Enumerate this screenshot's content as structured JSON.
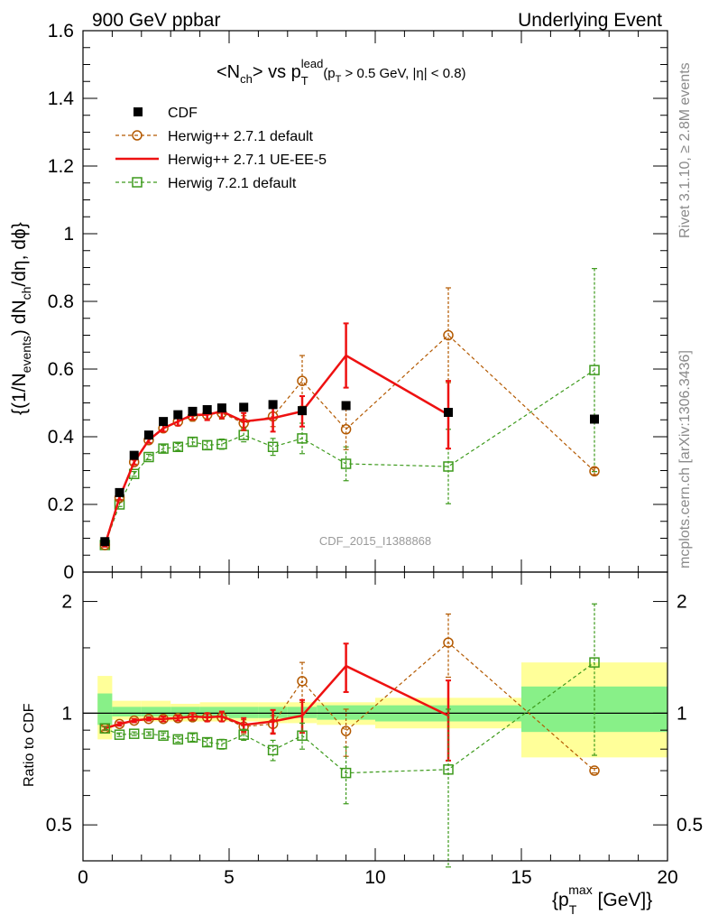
{
  "header": {
    "left": "900 GeV ppbar",
    "right": "Underlying Event"
  },
  "side_labels": {
    "rivet": "Rivet 3.1.10, ≥ 2.8M events",
    "mcplots": "mcplots.cern.ch [arXiv:1306.3436]"
  },
  "chart_data": [
    {
      "type": "scatter",
      "panel": "main",
      "title": "<N_ch> vs p_T^lead (p_T > 0.5 GeV, |η| < 0.8)",
      "ylabel": "{(1/N_events) dN_ch/dη, dϕ}",
      "xlabel": "",
      "watermark": "CDF_2015_I1388868",
      "xlim": [
        0,
        20
      ],
      "ylim": [
        0,
        1.6
      ],
      "xticks": [
        "0",
        "5",
        "10",
        "15",
        "20"
      ],
      "yticks": [
        "0",
        "0.2",
        "0.4",
        "0.6",
        "0.8",
        "1",
        "1.2",
        "1.4",
        "1.6"
      ],
      "legend_position": "top-left",
      "series": [
        {
          "name": "CDF",
          "color": "#000000",
          "style": "square-marker",
          "x": [
            0.75,
            1.25,
            1.75,
            2.25,
            2.75,
            3.25,
            3.75,
            4.25,
            4.75,
            5.5,
            6.5,
            7.5,
            9.0,
            12.5,
            17.5
          ],
          "y": [
            0.09,
            0.235,
            0.345,
            0.405,
            0.445,
            0.465,
            0.475,
            0.48,
            0.485,
            0.487,
            0.495,
            0.477,
            0.492,
            0.472,
            0.452
          ],
          "err": [
            0.005,
            0.005,
            0.005,
            0.005,
            0.005,
            0.005,
            0.005,
            0.005,
            0.005,
            0.005,
            0.005,
            0.005,
            0.005,
            0.005,
            0.005
          ]
        },
        {
          "name": "Herwig++ 2.7.1 default",
          "color": "#b35900",
          "style": "dashed-open-circle",
          "x": [
            0.75,
            1.25,
            1.75,
            2.25,
            2.75,
            3.25,
            3.75,
            4.25,
            4.75,
            5.5,
            6.5,
            7.5,
            9.0,
            12.5,
            17.5
          ],
          "y": [
            0.08,
            0.22,
            0.325,
            0.39,
            0.425,
            0.445,
            0.46,
            0.465,
            0.47,
            0.44,
            0.46,
            0.565,
            0.422,
            0.7,
            0.298
          ],
          "err": [
            0.005,
            0.006,
            0.007,
            0.008,
            0.01,
            0.012,
            0.014,
            0.016,
            0.018,
            0.022,
            0.03,
            0.075,
            0.06,
            0.14,
            0.01
          ]
        },
        {
          "name": "Herwig++ 2.7.1 UE-EE-5",
          "color": "#ee1111",
          "style": "solid-line",
          "x": [
            0.75,
            1.25,
            1.75,
            2.25,
            2.75,
            3.25,
            3.75,
            4.25,
            4.75,
            5.5,
            6.5,
            7.5,
            9.0,
            12.5
          ],
          "y": [
            0.08,
            0.22,
            0.325,
            0.39,
            0.425,
            0.445,
            0.465,
            0.465,
            0.475,
            0.445,
            0.455,
            0.475,
            0.64,
            0.465
          ],
          "err": [
            0.005,
            0.006,
            0.007,
            0.008,
            0.01,
            0.012,
            0.014,
            0.016,
            0.02,
            0.025,
            0.04,
            0.045,
            0.095,
            0.1
          ]
        },
        {
          "name": "Herwig 7.2.1 default",
          "color": "#3d9a1c",
          "style": "dashed-open-square",
          "x": [
            0.75,
            1.25,
            1.75,
            2.25,
            2.75,
            3.25,
            3.75,
            4.25,
            4.75,
            5.5,
            6.5,
            7.5,
            9.0,
            12.5,
            17.5
          ],
          "y": [
            0.08,
            0.2,
            0.29,
            0.34,
            0.365,
            0.37,
            0.385,
            0.375,
            0.378,
            0.405,
            0.37,
            0.395,
            0.32,
            0.312,
            0.597
          ],
          "err": [
            0.005,
            0.006,
            0.007,
            0.008,
            0.01,
            0.01,
            0.012,
            0.012,
            0.015,
            0.02,
            0.025,
            0.045,
            0.05,
            0.11,
            0.3
          ]
        }
      ]
    },
    {
      "type": "scatter",
      "panel": "ratio",
      "ylabel": "Ratio to CDF",
      "xlabel": "{p_T^max [GeV]}",
      "xlim": [
        0,
        20
      ],
      "ylim": [
        0.4,
        2.4
      ],
      "yscale": "log",
      "xticks": [
        "0",
        "5",
        "10",
        "15",
        "20"
      ],
      "yticks": [
        "0.5",
        "1",
        "2"
      ],
      "reference_line": 1,
      "bands": [
        {
          "x0": 0.5,
          "x1": 1.0,
          "yellow": [
            0.85,
            1.26
          ],
          "green": [
            0.93,
            1.13
          ]
        },
        {
          "x0": 1.0,
          "x1": 2.0,
          "yellow": [
            0.96,
            1.08
          ],
          "green": [
            0.98,
            1.04
          ]
        },
        {
          "x0": 2.0,
          "x1": 3.0,
          "yellow": [
            0.95,
            1.08
          ],
          "green": [
            0.98,
            1.04
          ]
        },
        {
          "x0": 3.0,
          "x1": 4.0,
          "yellow": [
            0.95,
            1.06
          ],
          "green": [
            0.98,
            1.04
          ]
        },
        {
          "x0": 4.0,
          "x1": 5.0,
          "yellow": [
            0.95,
            1.07
          ],
          "green": [
            0.98,
            1.04
          ]
        },
        {
          "x0": 5.0,
          "x1": 6.0,
          "yellow": [
            0.95,
            1.07
          ],
          "green": [
            0.97,
            1.04
          ]
        },
        {
          "x0": 6.0,
          "x1": 7.0,
          "yellow": [
            0.94,
            1.07
          ],
          "green": [
            0.97,
            1.04
          ]
        },
        {
          "x0": 7.0,
          "x1": 8.0,
          "yellow": [
            0.94,
            1.07
          ],
          "green": [
            0.97,
            1.04
          ]
        },
        {
          "x0": 8.0,
          "x1": 10.0,
          "yellow": [
            0.93,
            1.07
          ],
          "green": [
            0.96,
            1.05
          ]
        },
        {
          "x0": 10.0,
          "x1": 15.0,
          "yellow": [
            0.91,
            1.1
          ],
          "green": [
            0.95,
            1.05
          ]
        },
        {
          "x0": 15.0,
          "x1": 20.0,
          "yellow": [
            0.76,
            1.37
          ],
          "green": [
            0.89,
            1.18
          ]
        }
      ],
      "series": [
        {
          "name": "Herwig++ 2.7.1 default",
          "color": "#b35900",
          "style": "dashed-open-circle",
          "x": [
            0.75,
            1.25,
            1.75,
            2.25,
            2.75,
            3.25,
            3.75,
            4.25,
            4.75,
            5.5,
            6.5,
            7.5,
            9.0,
            12.5,
            17.5
          ],
          "y": [
            0.91,
            0.935,
            0.955,
            0.965,
            0.965,
            0.97,
            0.975,
            0.975,
            0.975,
            0.92,
            0.935,
            1.22,
            0.895,
            1.55,
            0.7
          ],
          "err": [
            0.01,
            0.01,
            0.01,
            0.01,
            0.015,
            0.015,
            0.02,
            0.02,
            0.025,
            0.04,
            0.05,
            0.15,
            0.13,
            0.3,
            0.01
          ]
        },
        {
          "name": "Herwig++ 2.7.1 UE-EE-5",
          "color": "#ee1111",
          "style": "solid-line",
          "x": [
            0.75,
            1.25,
            1.75,
            2.25,
            2.75,
            3.25,
            3.75,
            4.25,
            4.75,
            5.5,
            6.5,
            7.5,
            9.0,
            12.5
          ],
          "y": [
            0.91,
            0.935,
            0.955,
            0.965,
            0.965,
            0.97,
            0.98,
            0.975,
            0.98,
            0.93,
            0.95,
            0.985,
            1.34,
            0.985
          ],
          "err": [
            0.01,
            0.01,
            0.01,
            0.01,
            0.015,
            0.015,
            0.02,
            0.025,
            0.03,
            0.04,
            0.07,
            0.1,
            0.2,
            0.24
          ]
        },
        {
          "name": "Herwig 7.2.1 default",
          "color": "#3d9a1c",
          "style": "dashed-open-square",
          "x": [
            0.75,
            1.25,
            1.75,
            2.25,
            2.75,
            3.25,
            3.75,
            4.25,
            4.75,
            5.5,
            6.5,
            7.5,
            9.0,
            12.5,
            17.5
          ],
          "y": [
            0.91,
            0.875,
            0.88,
            0.88,
            0.87,
            0.85,
            0.86,
            0.835,
            0.825,
            0.875,
            0.795,
            0.87,
            0.69,
            0.705,
            1.37
          ],
          "err": [
            0.01,
            0.01,
            0.01,
            0.01,
            0.015,
            0.015,
            0.02,
            0.02,
            0.025,
            0.03,
            0.05,
            0.07,
            0.12,
            0.32,
            0.6
          ]
        }
      ]
    }
  ]
}
